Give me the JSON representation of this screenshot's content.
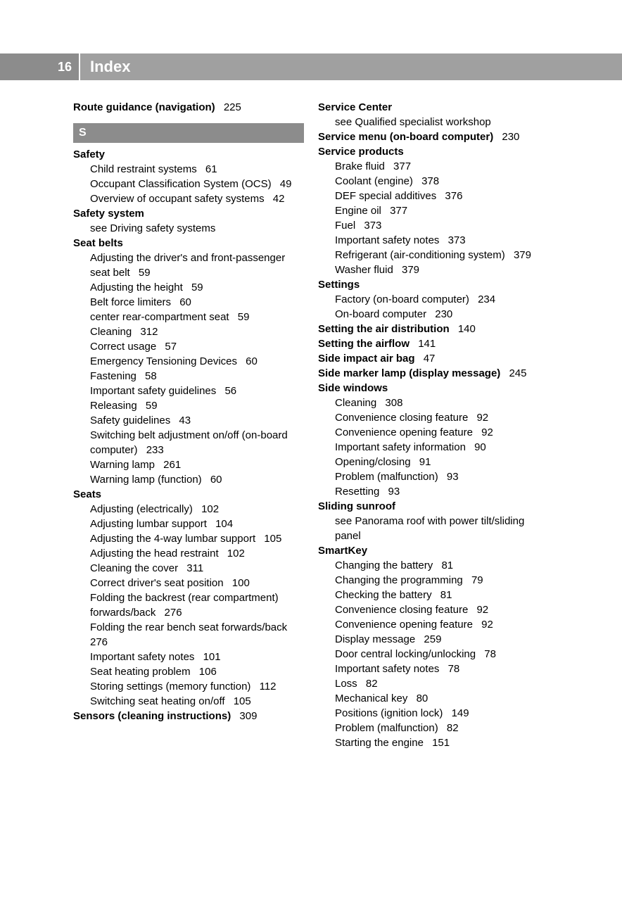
{
  "header": {
    "page_number": "16",
    "title": "Index",
    "colors": {
      "page_num_bg": "#8c8c8c",
      "title_bg": "#a0a0a0",
      "text": "#ffffff"
    }
  },
  "section_letter": "S",
  "left_column": [
    {
      "type": "entry",
      "bold": true,
      "sub": false,
      "label": "Route guidance (navigation)",
      "leader": true,
      "page": "225"
    },
    {
      "type": "letter"
    },
    {
      "type": "heading",
      "label": "Safety"
    },
    {
      "type": "entry",
      "bold": false,
      "sub": true,
      "label": "Child restraint systems",
      "leader": true,
      "page": "61"
    },
    {
      "type": "entry",
      "bold": false,
      "sub": true,
      "label": "Occupant Classification System (OCS)",
      "leader": true,
      "page": "49"
    },
    {
      "type": "entry",
      "bold": false,
      "sub": true,
      "label": "Overview of occupant safety systems",
      "leader": true,
      "page": "42"
    },
    {
      "type": "heading",
      "label": "Safety system"
    },
    {
      "type": "see",
      "label": "see Driving safety systems"
    },
    {
      "type": "heading",
      "label": "Seat belts"
    },
    {
      "type": "entry",
      "bold": false,
      "sub": true,
      "label": "Adjusting the driver's and front-passenger seat belt",
      "leader": true,
      "page": "59"
    },
    {
      "type": "entry",
      "bold": false,
      "sub": true,
      "label": "Adjusting the height",
      "leader": true,
      "page": "59"
    },
    {
      "type": "entry",
      "bold": false,
      "sub": true,
      "label": "Belt force limiters",
      "leader": true,
      "page": "60"
    },
    {
      "type": "entry",
      "bold": false,
      "sub": true,
      "label": "center rear-compartment seat",
      "leader": true,
      "page": "59"
    },
    {
      "type": "entry",
      "bold": false,
      "sub": true,
      "label": "Cleaning",
      "leader": true,
      "page": "312"
    },
    {
      "type": "entry",
      "bold": false,
      "sub": true,
      "label": "Correct usage",
      "leader": true,
      "page": "57"
    },
    {
      "type": "entry",
      "bold": false,
      "sub": true,
      "label": "Emergency Tensioning Devices",
      "leader": true,
      "page": "60"
    },
    {
      "type": "entry",
      "bold": false,
      "sub": true,
      "label": "Fastening",
      "leader": true,
      "page": "58"
    },
    {
      "type": "entry",
      "bold": false,
      "sub": true,
      "label": "Important safety guidelines",
      "leader": true,
      "page": "56"
    },
    {
      "type": "entry",
      "bold": false,
      "sub": true,
      "label": "Releasing",
      "leader": true,
      "page": "59"
    },
    {
      "type": "entry",
      "bold": false,
      "sub": true,
      "label": "Safety guidelines",
      "leader": true,
      "page": "43"
    },
    {
      "type": "entry",
      "bold": false,
      "sub": true,
      "label": "Switching belt adjustment on/off (on-board computer)",
      "leader": true,
      "page": "233"
    },
    {
      "type": "entry",
      "bold": false,
      "sub": true,
      "label": "Warning lamp",
      "leader": true,
      "page": "261"
    },
    {
      "type": "entry",
      "bold": false,
      "sub": true,
      "label": "Warning lamp (function)",
      "leader": true,
      "page": "60"
    },
    {
      "type": "heading",
      "label": "Seats"
    },
    {
      "type": "entry",
      "bold": false,
      "sub": true,
      "label": "Adjusting (electrically)",
      "leader": true,
      "page": "102"
    },
    {
      "type": "entry",
      "bold": false,
      "sub": true,
      "label": "Adjusting lumbar support",
      "leader": true,
      "page": "104"
    },
    {
      "type": "entry",
      "bold": false,
      "sub": true,
      "label": "Adjusting the 4-way lumbar support",
      "leader": true,
      "page": "105"
    },
    {
      "type": "entry",
      "bold": false,
      "sub": true,
      "label": "Adjusting the head restraint",
      "leader": true,
      "page": "102"
    },
    {
      "type": "entry",
      "bold": false,
      "sub": true,
      "label": "Cleaning the cover",
      "leader": true,
      "page": "311"
    },
    {
      "type": "entry",
      "bold": false,
      "sub": true,
      "label": "Correct driver's seat position",
      "leader": true,
      "page": "100"
    },
    {
      "type": "entry",
      "bold": false,
      "sub": true,
      "label": "Folding the backrest (rear compartment) forwards/back",
      "leader": true,
      "page": "276"
    },
    {
      "type": "entry",
      "bold": false,
      "sub": true,
      "label": "Folding the rear bench seat forwards/back",
      "leader": true,
      "page": "276"
    },
    {
      "type": "entry",
      "bold": false,
      "sub": true,
      "label": "Important safety notes",
      "leader": true,
      "page": "101"
    },
    {
      "type": "entry",
      "bold": false,
      "sub": true,
      "label": "Seat heating problem",
      "leader": true,
      "page": "106"
    },
    {
      "type": "entry",
      "bold": false,
      "sub": true,
      "label": "Storing settings (memory function)",
      "leader": true,
      "page": "112"
    },
    {
      "type": "entry",
      "bold": false,
      "sub": true,
      "label": "Switching seat heating on/off",
      "leader": true,
      "page": "105"
    },
    {
      "type": "entry",
      "bold": true,
      "sub": false,
      "label": "Sensors (cleaning instructions)",
      "leader": true,
      "page": "309"
    }
  ],
  "right_column": [
    {
      "type": "heading",
      "label": "Service Center"
    },
    {
      "type": "see",
      "label": "see Qualified specialist workshop"
    },
    {
      "type": "entry",
      "bold": true,
      "sub": false,
      "label": "Service menu (on-board computer)",
      "leader": true,
      "page": "230"
    },
    {
      "type": "heading",
      "label": "Service products"
    },
    {
      "type": "entry",
      "bold": false,
      "sub": true,
      "label": "Brake fluid",
      "leader": true,
      "page": "377"
    },
    {
      "type": "entry",
      "bold": false,
      "sub": true,
      "label": "Coolant (engine)",
      "leader": true,
      "page": "378"
    },
    {
      "type": "entry",
      "bold": false,
      "sub": true,
      "label": "DEF special additives",
      "leader": true,
      "page": "376"
    },
    {
      "type": "entry",
      "bold": false,
      "sub": true,
      "label": "Engine oil",
      "leader": true,
      "page": "377"
    },
    {
      "type": "entry",
      "bold": false,
      "sub": true,
      "label": "Fuel",
      "leader": true,
      "page": "373"
    },
    {
      "type": "entry",
      "bold": false,
      "sub": true,
      "label": "Important safety notes",
      "leader": true,
      "page": "373"
    },
    {
      "type": "entry",
      "bold": false,
      "sub": true,
      "label": "Refrigerant (air-conditioning system)",
      "leader": true,
      "page": "379"
    },
    {
      "type": "entry",
      "bold": false,
      "sub": true,
      "label": "Washer fluid",
      "leader": true,
      "page": "379"
    },
    {
      "type": "heading",
      "label": "Settings"
    },
    {
      "type": "entry",
      "bold": false,
      "sub": true,
      "label": "Factory (on-board computer)",
      "leader": true,
      "page": "234"
    },
    {
      "type": "entry",
      "bold": false,
      "sub": true,
      "label": "On-board computer",
      "leader": true,
      "page": "230"
    },
    {
      "type": "entry",
      "bold": true,
      "sub": false,
      "label": "Setting the air distribution",
      "leader": true,
      "page": "140"
    },
    {
      "type": "entry",
      "bold": true,
      "sub": false,
      "label": "Setting the airflow",
      "leader": true,
      "page": "141"
    },
    {
      "type": "entry",
      "bold": true,
      "sub": false,
      "label": "Side impact air bag",
      "leader": true,
      "page": "47"
    },
    {
      "type": "entry",
      "bold": true,
      "sub": false,
      "label": "Side marker lamp (display message)",
      "leader": true,
      "page": "245"
    },
    {
      "type": "heading",
      "label": "Side windows"
    },
    {
      "type": "entry",
      "bold": false,
      "sub": true,
      "label": "Cleaning",
      "leader": true,
      "page": "308"
    },
    {
      "type": "entry",
      "bold": false,
      "sub": true,
      "label": "Convenience closing feature",
      "leader": true,
      "page": "92"
    },
    {
      "type": "entry",
      "bold": false,
      "sub": true,
      "label": "Convenience opening feature",
      "leader": true,
      "page": "92"
    },
    {
      "type": "entry",
      "bold": false,
      "sub": true,
      "label": "Important safety information",
      "leader": true,
      "page": "90"
    },
    {
      "type": "entry",
      "bold": false,
      "sub": true,
      "label": "Opening/closing",
      "leader": true,
      "page": "91"
    },
    {
      "type": "entry",
      "bold": false,
      "sub": true,
      "label": "Problem (malfunction)",
      "leader": true,
      "page": "93"
    },
    {
      "type": "entry",
      "bold": false,
      "sub": true,
      "label": "Resetting",
      "leader": true,
      "page": "93"
    },
    {
      "type": "heading",
      "label": "Sliding sunroof"
    },
    {
      "type": "see",
      "label": "see Panorama roof with power tilt/sliding panel"
    },
    {
      "type": "heading",
      "label": "SmartKey"
    },
    {
      "type": "entry",
      "bold": false,
      "sub": true,
      "label": "Changing the battery",
      "leader": true,
      "page": "81"
    },
    {
      "type": "entry",
      "bold": false,
      "sub": true,
      "label": "Changing the programming",
      "leader": true,
      "page": "79"
    },
    {
      "type": "entry",
      "bold": false,
      "sub": true,
      "label": "Checking the battery",
      "leader": true,
      "page": "81"
    },
    {
      "type": "entry",
      "bold": false,
      "sub": true,
      "label": "Convenience closing feature",
      "leader": true,
      "page": "92"
    },
    {
      "type": "entry",
      "bold": false,
      "sub": true,
      "label": "Convenience opening feature",
      "leader": true,
      "page": "92"
    },
    {
      "type": "entry",
      "bold": false,
      "sub": true,
      "label": "Display message",
      "leader": true,
      "page": "259"
    },
    {
      "type": "entry",
      "bold": false,
      "sub": true,
      "label": "Door central locking/unlocking",
      "leader": true,
      "page": "78"
    },
    {
      "type": "entry",
      "bold": false,
      "sub": true,
      "label": "Important safety notes",
      "leader": true,
      "page": "78"
    },
    {
      "type": "entry",
      "bold": false,
      "sub": true,
      "label": "Loss",
      "leader": true,
      "page": "82"
    },
    {
      "type": "entry",
      "bold": false,
      "sub": true,
      "label": "Mechanical key",
      "leader": true,
      "page": "80"
    },
    {
      "type": "entry",
      "bold": false,
      "sub": true,
      "label": "Positions (ignition lock)",
      "leader": true,
      "page": "149"
    },
    {
      "type": "entry",
      "bold": false,
      "sub": true,
      "label": "Problem (malfunction)",
      "leader": true,
      "page": "82"
    },
    {
      "type": "entry",
      "bold": false,
      "sub": true,
      "label": "Starting the engine",
      "leader": true,
      "page": "151"
    }
  ]
}
